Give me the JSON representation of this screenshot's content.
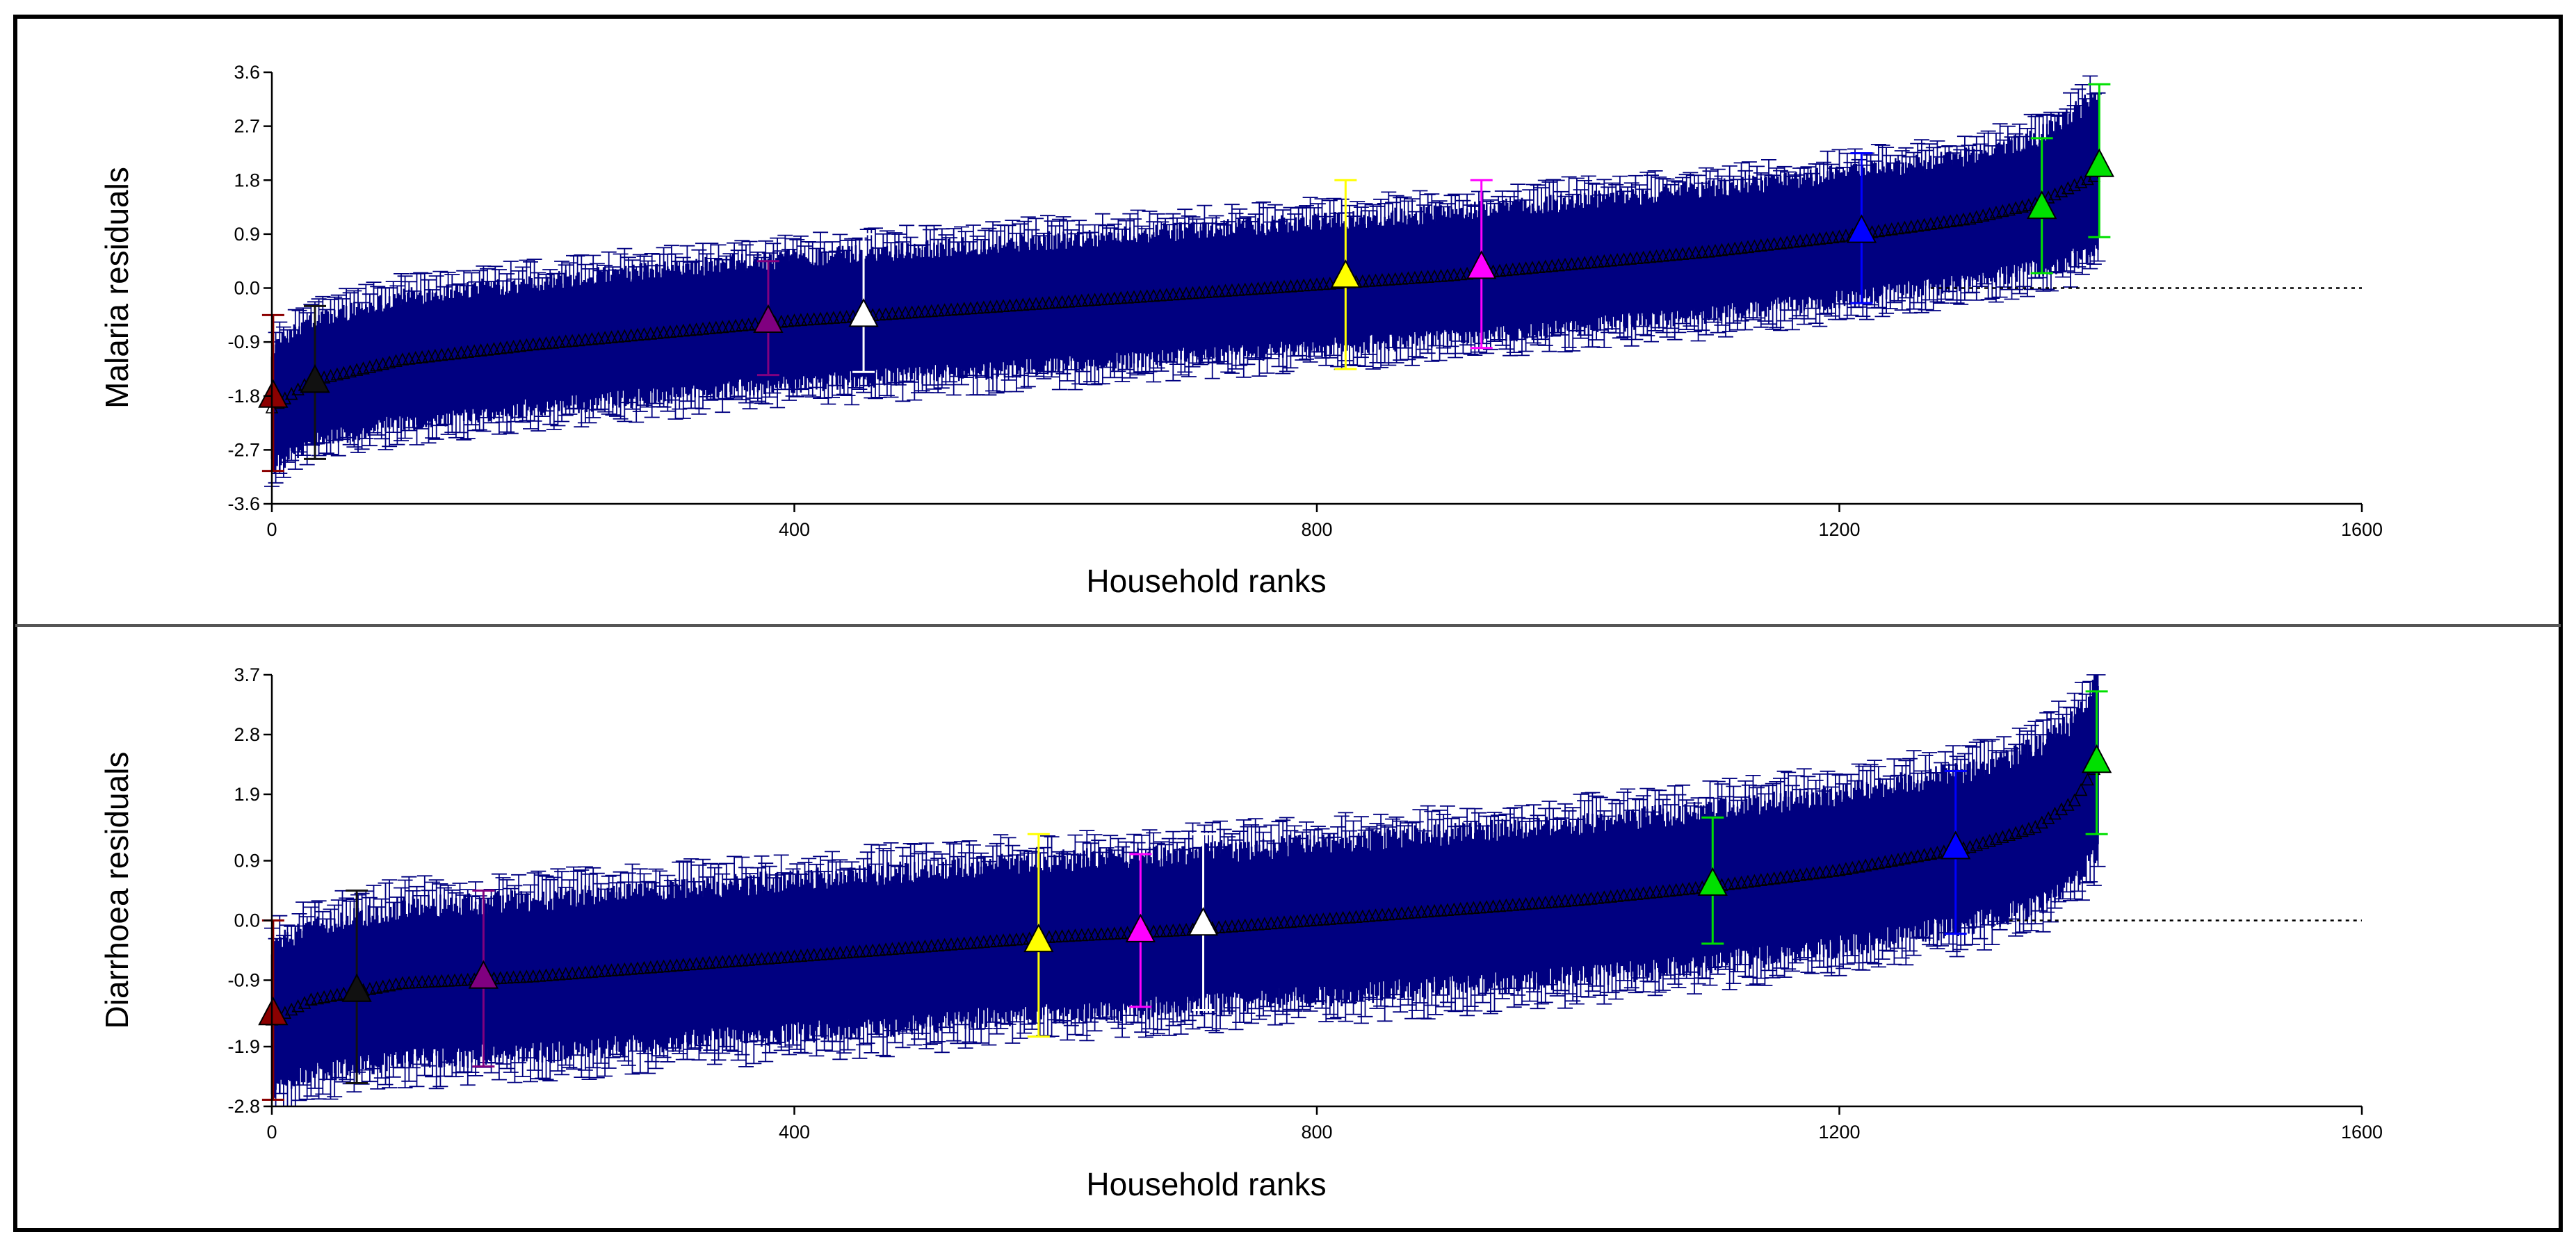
{
  "colors": {
    "error_bar": "#000080",
    "marker": "#000000"
  },
  "chart_data": [
    {
      "type": "scatter",
      "subtype": "caterpillar plot with error bars",
      "xlabel": "Household ranks",
      "ylabel": "Malaria residuals",
      "xlim": [
        0,
        1600
      ],
      "ylim": [
        -3.6,
        3.6
      ],
      "xticks": [
        "0",
        "400",
        "800",
        "1200",
        "1600"
      ],
      "yticks": [
        "-3.6",
        "-2.7",
        "-1.8",
        "-0.9",
        "0.0",
        "0.9",
        "1.8",
        "2.7",
        "3.6"
      ],
      "reference_line": {
        "y": 0.0,
        "x_range": [
          1270,
          1600
        ],
        "style": "dotted"
      },
      "ranked_residuals": {
        "n": 1399,
        "x": [
          0,
          30,
          100,
          200,
          300,
          400,
          500,
          600,
          700,
          800,
          900,
          1000,
          1100,
          1200,
          1300,
          1350,
          1399
        ],
        "y": [
          -2.0,
          -1.55,
          -1.2,
          -0.95,
          -0.75,
          -0.55,
          -0.4,
          -0.25,
          -0.1,
          0.05,
          0.2,
          0.4,
          0.6,
          0.85,
          1.15,
          1.4,
          1.9
        ],
        "error": [
          1.0,
          1.0,
          1.05,
          1.05,
          1.05,
          1.05,
          1.05,
          1.05,
          1.05,
          1.05,
          1.05,
          1.05,
          1.05,
          1.05,
          1.05,
          1.1,
          1.3
        ]
      },
      "highlighted_households": [
        {
          "rank": 1,
          "value": -1.8,
          "lower": -3.05,
          "upper": -0.45,
          "color": "#8b0000"
        },
        {
          "rank": 33,
          "value": -1.55,
          "lower": -2.85,
          "upper": -0.3,
          "color": "#111111"
        },
        {
          "rank": 380,
          "value": -0.55,
          "lower": -1.45,
          "upper": 0.45,
          "color": "#800080"
        },
        {
          "rank": 453,
          "value": -0.45,
          "lower": -1.4,
          "upper": 0.9,
          "color": "#ffffff"
        },
        {
          "rank": 822,
          "value": 0.2,
          "lower": -1.35,
          "upper": 1.8,
          "color": "#ffff00"
        },
        {
          "rank": 926,
          "value": 0.35,
          "lower": -1.0,
          "upper": 1.8,
          "color": "#ff00ff"
        },
        {
          "rank": 1217,
          "value": 0.95,
          "lower": -0.25,
          "upper": 2.25,
          "color": "#0000ff"
        },
        {
          "rank": 1355,
          "value": 1.35,
          "lower": 0.25,
          "upper": 2.5,
          "color": "#00e000"
        },
        {
          "rank": 1399,
          "value": 2.05,
          "lower": 0.85,
          "upper": 3.4,
          "color": "#00e000"
        }
      ]
    },
    {
      "type": "scatter",
      "subtype": "caterpillar plot with error bars",
      "xlabel": "Household ranks",
      "ylabel": "Diarrhoea residuals",
      "xlim": [
        0,
        1600
      ],
      "ylim": [
        -2.8,
        3.7
      ],
      "xticks": [
        "0",
        "400",
        "800",
        "1200",
        "1600"
      ],
      "yticks": [
        "-2.8",
        "-1.9",
        "-0.9",
        "0.0",
        "0.9",
        "1.9",
        "2.8",
        "3.7"
      ],
      "reference_line": {
        "y": 0.0,
        "x_range": [
          1330,
          1600
        ],
        "style": "dotted"
      },
      "ranked_residuals": {
        "n": 1399,
        "x": [
          0,
          30,
          100,
          200,
          300,
          400,
          500,
          600,
          700,
          800,
          900,
          1000,
          1100,
          1200,
          1300,
          1350,
          1380,
          1399
        ],
        "y": [
          -1.5,
          -1.2,
          -0.95,
          -0.85,
          -0.7,
          -0.55,
          -0.4,
          -0.25,
          -0.15,
          0.0,
          0.15,
          0.3,
          0.5,
          0.75,
          1.1,
          1.4,
          1.8,
          2.4
        ],
        "error": [
          1.1,
          1.1,
          1.15,
          1.15,
          1.15,
          1.15,
          1.15,
          1.15,
          1.15,
          1.15,
          1.15,
          1.15,
          1.15,
          1.15,
          1.15,
          1.2,
          1.2,
          1.3
        ]
      },
      "highlighted_households": [
        {
          "rank": 1,
          "value": -1.4,
          "lower": -2.7,
          "upper": 0.0,
          "color": "#8b0000"
        },
        {
          "rank": 65,
          "value": -1.05,
          "lower": -2.45,
          "upper": 0.45,
          "color": "#111111"
        },
        {
          "rank": 162,
          "value": -0.85,
          "lower": -2.2,
          "upper": 0.45,
          "color": "#800080"
        },
        {
          "rank": 587,
          "value": -0.3,
          "lower": -1.75,
          "upper": 1.3,
          "color": "#ffff00"
        },
        {
          "rank": 665,
          "value": -0.15,
          "lower": -1.3,
          "upper": 1.0,
          "color": "#ff00ff"
        },
        {
          "rank": 713,
          "value": -0.05,
          "lower": -1.35,
          "upper": 1.3,
          "color": "#ffffff"
        },
        {
          "rank": 1103,
          "value": 0.55,
          "lower": -0.35,
          "upper": 1.55,
          "color": "#00e000"
        },
        {
          "rank": 1289,
          "value": 1.1,
          "lower": -0.2,
          "upper": 2.25,
          "color": "#0000ff"
        },
        {
          "rank": 1397,
          "value": 2.4,
          "lower": 1.3,
          "upper": 3.45,
          "color": "#00e000"
        }
      ]
    }
  ]
}
